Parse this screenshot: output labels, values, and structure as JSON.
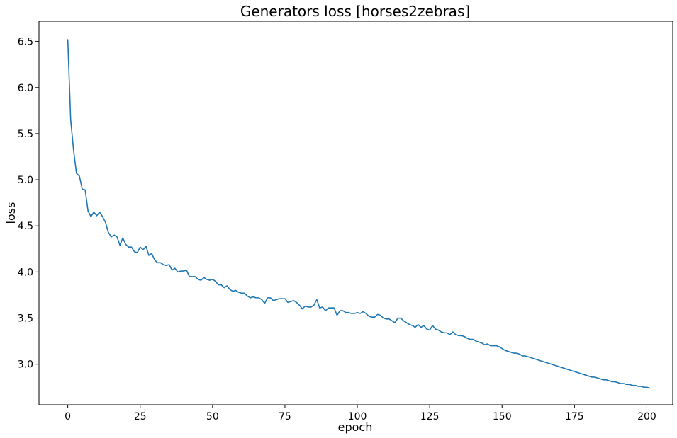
{
  "chart_data": {
    "type": "line",
    "title": "Generators loss [horses2zebras]",
    "xlabel": "epoch",
    "ylabel": "loss",
    "xlim": [
      -9.95,
      208.95
    ],
    "ylim": [
      2.56,
      6.72
    ],
    "xticks": [
      0,
      25,
      50,
      75,
      100,
      125,
      150,
      175,
      200
    ],
    "yticks": [
      3.0,
      3.5,
      4.0,
      4.5,
      5.0,
      5.5,
      6.0,
      6.5
    ],
    "xtick_labels": [
      "0",
      "25",
      "50",
      "75",
      "100",
      "125",
      "150",
      "175",
      "200"
    ],
    "ytick_labels": [
      "3.0",
      "3.5",
      "4.0",
      "4.5",
      "5.0",
      "5.5",
      "6.0",
      "6.5"
    ],
    "grid": false,
    "legend": false,
    "colors": {
      "line": "#1f77b4",
      "axes": "#000000",
      "background": "#ffffff"
    },
    "series": [
      {
        "values": [
          6.52,
          5.65,
          5.32,
          5.07,
          5.04,
          4.9,
          4.89,
          4.66,
          4.6,
          4.65,
          4.61,
          4.65,
          4.6,
          4.54,
          4.43,
          4.38,
          4.4,
          4.38,
          4.29,
          4.37,
          4.3,
          4.27,
          4.27,
          4.22,
          4.21,
          4.27,
          4.24,
          4.28,
          4.18,
          4.2,
          4.13,
          4.1,
          4.1,
          4.08,
          4.07,
          4.08,
          4.02,
          4.04,
          4.0,
          4.01,
          4.01,
          4.02,
          3.95,
          3.95,
          3.95,
          3.92,
          3.91,
          3.94,
          3.92,
          3.91,
          3.92,
          3.9,
          3.86,
          3.86,
          3.83,
          3.85,
          3.81,
          3.79,
          3.8,
          3.78,
          3.77,
          3.77,
          3.74,
          3.72,
          3.73,
          3.72,
          3.72,
          3.7,
          3.66,
          3.72,
          3.72,
          3.69,
          3.7,
          3.71,
          3.71,
          3.71,
          3.67,
          3.68,
          3.69,
          3.67,
          3.64,
          3.6,
          3.63,
          3.62,
          3.62,
          3.64,
          3.7,
          3.61,
          3.62,
          3.58,
          3.61,
          3.61,
          3.61,
          3.53,
          3.58,
          3.58,
          3.56,
          3.56,
          3.55,
          3.55,
          3.56,
          3.55,
          3.57,
          3.55,
          3.52,
          3.51,
          3.51,
          3.54,
          3.53,
          3.5,
          3.49,
          3.49,
          3.47,
          3.45,
          3.5,
          3.5,
          3.47,
          3.45,
          3.43,
          3.42,
          3.4,
          3.43,
          3.4,
          3.42,
          3.38,
          3.37,
          3.42,
          3.38,
          3.37,
          3.35,
          3.34,
          3.34,
          3.32,
          3.35,
          3.32,
          3.31,
          3.31,
          3.3,
          3.28,
          3.27,
          3.27,
          3.25,
          3.24,
          3.23,
          3.21,
          3.22,
          3.2,
          3.2,
          3.2,
          3.19,
          3.17,
          3.15,
          3.14,
          3.13,
          3.12,
          3.12,
          3.11,
          3.09,
          3.09,
          3.08,
          3.07,
          3.06,
          3.05,
          3.04,
          3.03,
          3.02,
          3.01,
          3.0,
          2.99,
          2.98,
          2.97,
          2.96,
          2.95,
          2.94,
          2.93,
          2.92,
          2.91,
          2.9,
          2.89,
          2.88,
          2.87,
          2.86,
          2.86,
          2.85,
          2.84,
          2.83,
          2.83,
          2.82,
          2.81,
          2.81,
          2.8,
          2.79,
          2.79,
          2.78,
          2.78,
          2.77,
          2.77,
          2.76,
          2.76,
          2.75,
          2.75,
          2.74
        ]
      }
    ]
  }
}
